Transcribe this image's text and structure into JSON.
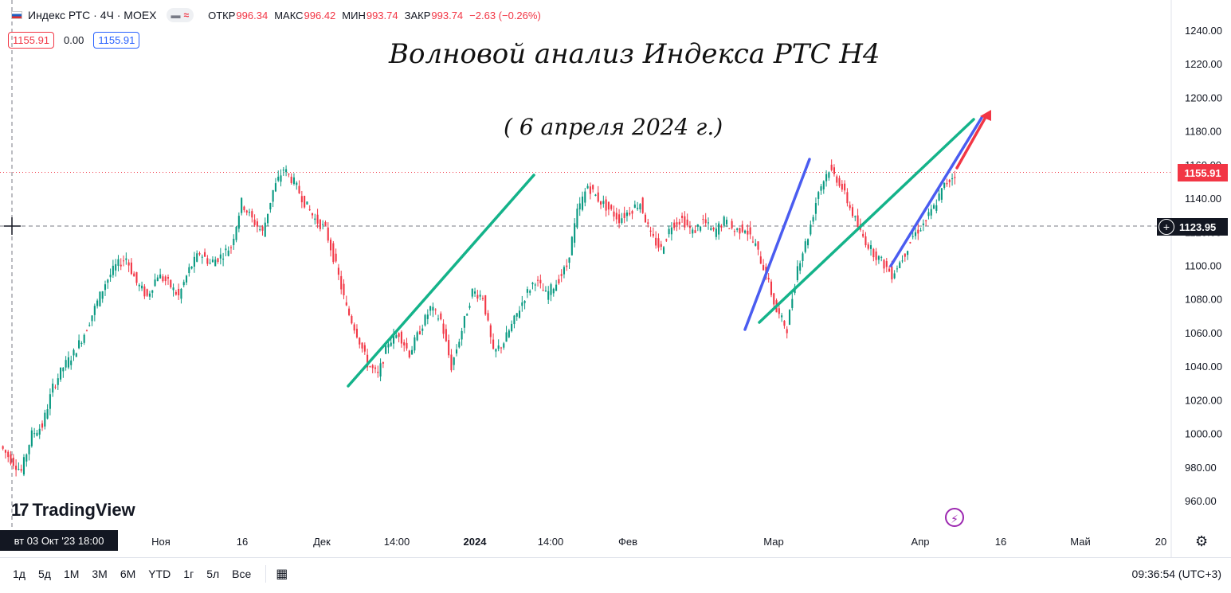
{
  "header": {
    "symbol": "Индекс РТС · 4Ч · MOEX",
    "pill_wave": "≈",
    "ohlc": [
      {
        "key": "ОТКР",
        "value": "996.34"
      },
      {
        "key": "МАКС",
        "value": "996.42"
      },
      {
        "key": "МИН",
        "value": "993.74"
      },
      {
        "key": "ЗАКР",
        "value": "993.74"
      }
    ],
    "change": "−2.63 (−0.26%)"
  },
  "order_bar": {
    "sell": "1155.91",
    "spread": "0.00",
    "buy": "1155.91"
  },
  "chart_data": {
    "type": "candlestick",
    "title": "Волновой анализ Индекса РТС Н4",
    "subtitle": "( 6 апреля 2024 г.)",
    "ylim": [
      950,
      1245
    ],
    "y_ticks": [
      "1240.00",
      "1220.00",
      "1200.00",
      "1180.00",
      "1160.00",
      "1140.00",
      "1120.00",
      "1100.00",
      "1080.00",
      "1060.00",
      "1040.00",
      "1020.00",
      "1000.00",
      "980.00",
      "960.00"
    ],
    "x_ticks": [
      "Ноя",
      "16",
      "Дек",
      "14:00",
      "2024",
      "14:00",
      "Фев",
      "Мар",
      "Апр",
      "16",
      "Май",
      "20"
    ],
    "last_price": "1155.91",
    "crosshair_price": "1123.95",
    "crosshair_date": "вт 03 Окт '23   18:00",
    "price_path": [
      993,
      985,
      978,
      1000,
      1005,
      1028,
      1040,
      1048,
      1060,
      1075,
      1090,
      1100,
      1105,
      1090,
      1082,
      1095,
      1090,
      1082,
      1098,
      1108,
      1102,
      1106,
      1112,
      1138,
      1128,
      1120,
      1145,
      1158,
      1150,
      1138,
      1128,
      1122,
      1100,
      1075,
      1060,
      1042,
      1035,
      1055,
      1060,
      1048,
      1062,
      1075,
      1068,
      1040,
      1062,
      1085,
      1082,
      1048,
      1055,
      1068,
      1082,
      1092,
      1083,
      1090,
      1100,
      1132,
      1148,
      1140,
      1134,
      1128,
      1133,
      1138,
      1118,
      1110,
      1125,
      1128,
      1120,
      1127,
      1120,
      1127,
      1121,
      1123,
      1112,
      1095,
      1073,
      1063,
      1100,
      1118,
      1145,
      1158,
      1150,
      1135,
      1120,
      1110,
      1103,
      1095,
      1105,
      1118,
      1125,
      1135,
      1148,
      1155
    ]
  },
  "drawings": {
    "green_lines": "green trend lines",
    "blue_lines": "blue trend lines",
    "red_arrow": "red arrow"
  },
  "logo": {
    "text": "TradingView",
    "mark": "17"
  },
  "range_buttons": [
    "1д",
    "5д",
    "1M",
    "3M",
    "6M",
    "YTD",
    "1г",
    "5л",
    "Все"
  ],
  "clock": "09:36:54 (UTC+3)",
  "colors": {
    "up": "#089981",
    "down": "#f23645",
    "green_line": "#14b38a",
    "blue_line": "#4a5cf0",
    "red_arrow": "#f23645",
    "last_price_tag": "#f23645",
    "crosshair_tag": "#131722"
  }
}
